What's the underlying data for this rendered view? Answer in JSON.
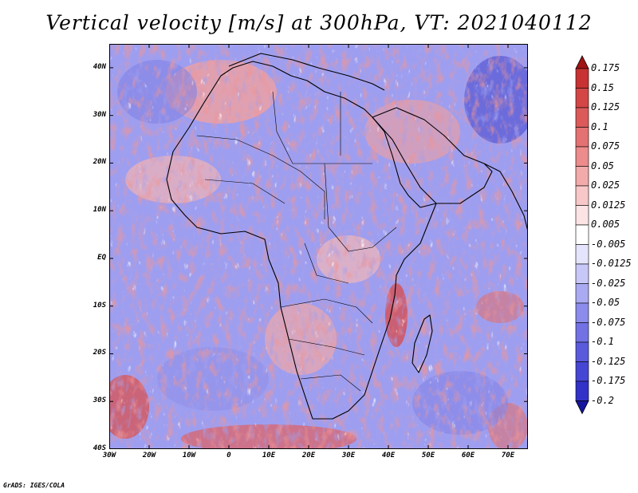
{
  "title": "Vertical velocity [m/s] at 300hPa, VT: 2021040112",
  "credit": "GrADS: IGES/COLA",
  "map": {
    "field": "vertical velocity",
    "level_hPa": 300,
    "valid_time": "2021040112",
    "lon_range": [
      -30,
      75
    ],
    "lat_range": [
      -40,
      45
    ],
    "lon_ticks": [
      "30W",
      "20W",
      "10W",
      "0",
      "10E",
      "20E",
      "30E",
      "40E",
      "50E",
      "60E",
      "70E"
    ],
    "lat_ticks": [
      "40N",
      "30N",
      "20N",
      "10N",
      "EQ",
      "10S",
      "20S",
      "30S",
      "40S"
    ],
    "region": "Africa"
  },
  "colorbar": {
    "labels": [
      "0.175",
      "0.15",
      "0.125",
      "0.1",
      "0.075",
      "0.05",
      "0.025",
      "0.0125",
      "0.005",
      "-0.005",
      "-0.0125",
      "-0.025",
      "-0.05",
      "-0.075",
      "-0.1",
      "-0.125",
      "-0.175",
      "-0.2"
    ],
    "colors": [
      "#b41e1e",
      "#c83232",
      "#d44646",
      "#dc5a5a",
      "#e47272",
      "#ec8c8c",
      "#f2aaaa",
      "#f8c8c8",
      "#fce4e4",
      "#ffffff",
      "#e4e4fc",
      "#c8c8f8",
      "#aaaaf2",
      "#8c8cec",
      "#7272e4",
      "#5a5adc",
      "#4646d4",
      "#3232c8",
      "#1e1eb4"
    ],
    "top_arrow_color": "#a01414",
    "bottom_arrow_color": "#1414a0"
  }
}
